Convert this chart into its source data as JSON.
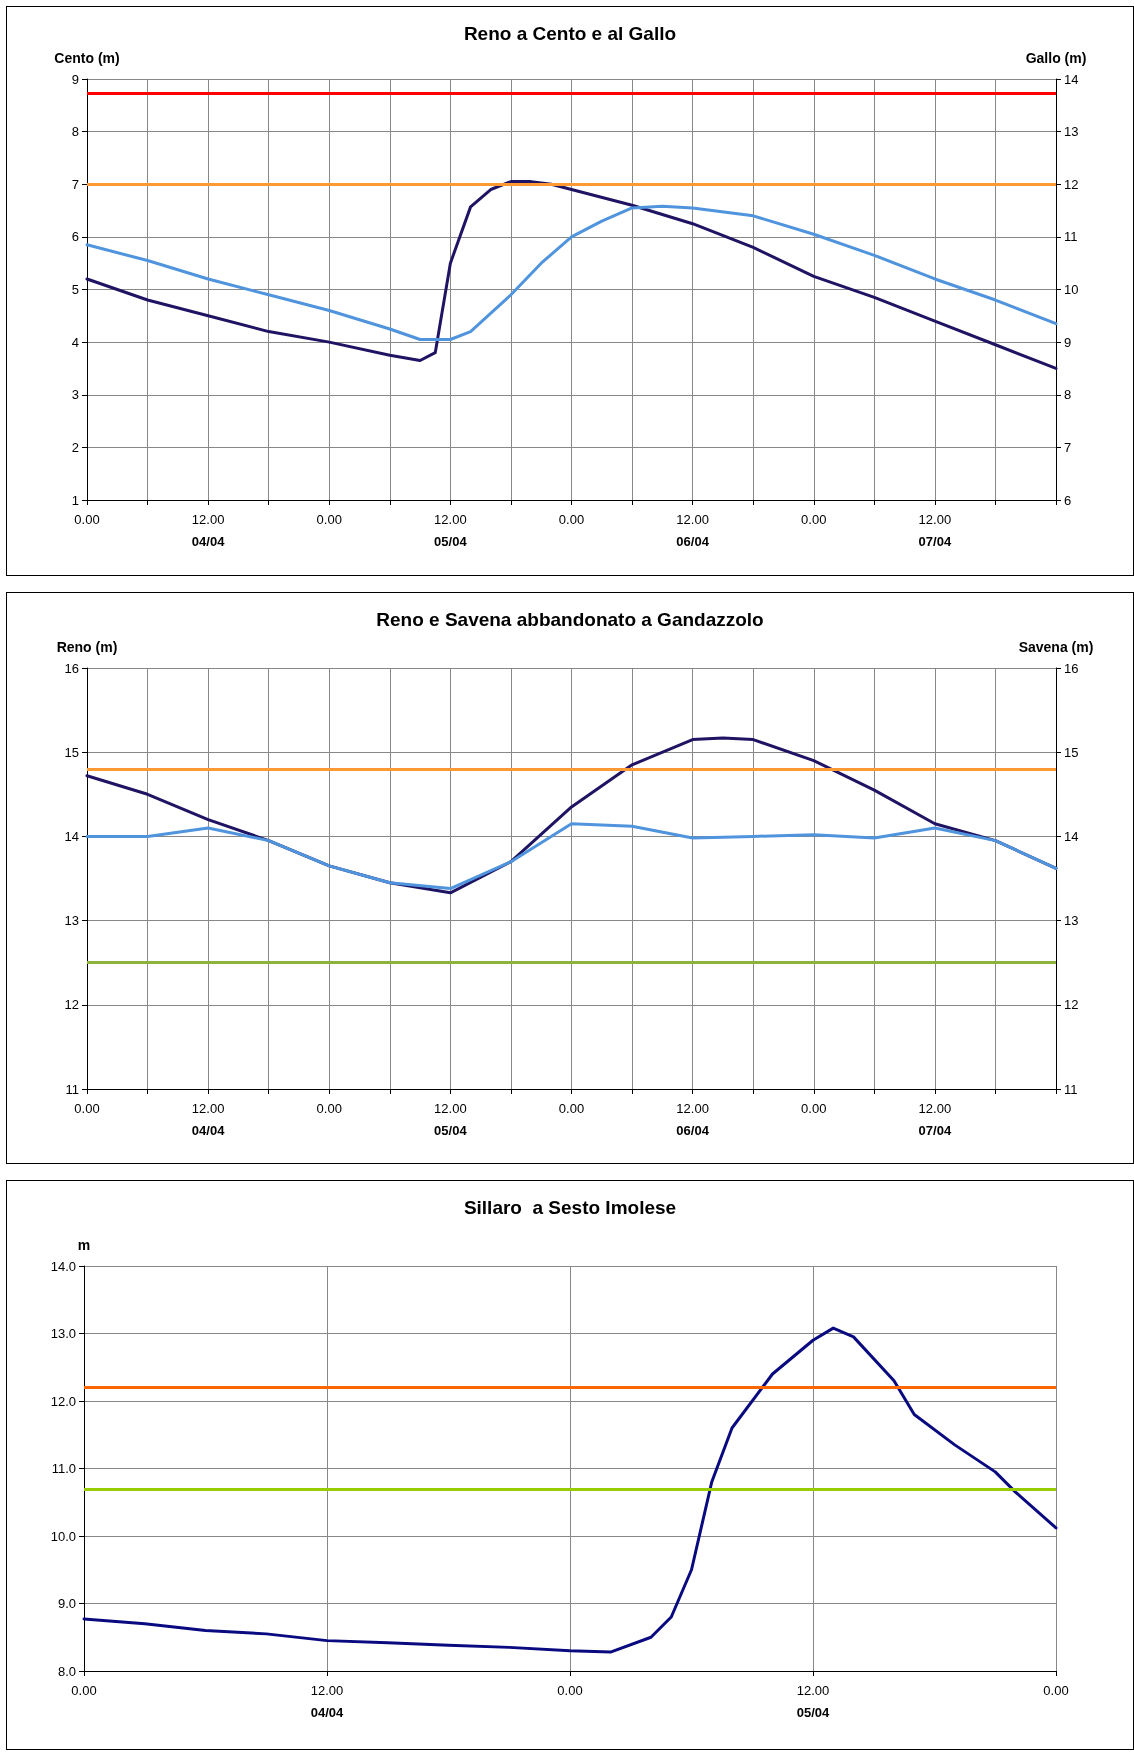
{
  "chart_data": [
    {
      "type": "line",
      "title": "Reno a Cento e al Gallo",
      "ylabel": "Cento (m)",
      "y2label": "Gallo (m)",
      "xlim": [
        "--04-04T00:00",
        "--04-08T00:00"
      ],
      "ylim": [
        1,
        9
      ],
      "yticks": [
        1,
        2,
        3,
        4,
        5,
        6,
        7,
        8,
        9
      ],
      "y2lim": [
        6,
        14
      ],
      "y2ticks": [
        6,
        7,
        8,
        9,
        10,
        11,
        12,
        13,
        14
      ],
      "xticks": [
        {
          "value": "--04-04T00:00",
          "label": "0.00"
        },
        {
          "value": "--04-04T06:00",
          "label": null
        },
        {
          "value": "--04-04T12:00",
          "label": "12.00\n04/04"
        },
        {
          "value": "--04-04T18:00",
          "label": null
        },
        {
          "value": "--04-05T00:00",
          "label": "0.00"
        },
        {
          "value": "--04-05T06:00",
          "label": null
        },
        {
          "value": "--04-05T12:00",
          "label": "12.00\n05/04"
        },
        {
          "value": "--04-05T18:00",
          "label": null
        },
        {
          "value": "--04-06T00:00",
          "label": "0.00"
        },
        {
          "value": "--04-06T06:00",
          "label": null
        },
        {
          "value": "--04-06T12:00",
          "label": "12.00\n06/04"
        },
        {
          "value": "--04-06T18:00",
          "label": null
        },
        {
          "value": "--04-07T00:00",
          "label": "0.00"
        },
        {
          "value": "--04-07T06:00",
          "label": null
        },
        {
          "value": "--04-07T12:00",
          "label": "12.00\n07/04"
        },
        {
          "value": "--04-07T18:00",
          "label": null
        },
        {
          "value": "--04-08T00:00",
          "label": null
        }
      ],
      "grid": true,
      "marker": "none",
      "line_style": "solid",
      "ref_lines": [
        {
          "axis": "y",
          "value": 8.72,
          "color": "#ff0000"
        },
        {
          "axis": "y",
          "value": 7,
          "color": "#ff9933"
        }
      ],
      "series": [
        {
          "color": "#1f1463",
          "x": [
            "--04-04T00:00",
            "--04-04T06:00",
            "--04-04T12:00",
            "--04-04T18:00",
            "--04-05T00:00",
            "--04-05T06:00",
            "--04-05T09:00",
            "--04-05T10:30",
            "--04-05T12:00",
            "--04-05T14:00",
            "--04-05T16:00",
            "--04-05T18:00",
            "--04-05T20:00",
            "--04-05T22:00",
            "--04-06T00:00",
            "--04-06T06:00",
            "--04-06T12:00",
            "--04-06T18:00",
            "--04-07T00:00",
            "--04-07T06:00",
            "--04-07T12:00",
            "--04-07T18:00",
            "--04-08T00:00"
          ],
          "values": [
            5.2,
            4.8,
            4.5,
            4.2,
            4.0,
            3.75,
            3.65,
            3.8,
            5.5,
            6.57,
            6.9,
            7.05,
            7.05,
            7.0,
            6.9,
            6.6,
            6.25,
            5.8,
            5.25,
            4.85,
            4.4,
            3.95,
            3.5
          ]
        },
        {
          "color": "#4f94dc",
          "axis": "y2",
          "x": [
            "--04-04T00:00",
            "--04-04T06:00",
            "--04-04T12:00",
            "--04-04T18:00",
            "--04-05T00:00",
            "--04-05T06:00",
            "--04-05T09:00",
            "--04-05T12:00",
            "--04-05T14:00",
            "--04-05T18:00",
            "--04-05T21:00",
            "--04-06T00:00",
            "--04-06T03:00",
            "--04-06T06:00",
            "--04-06T09:00",
            "--04-06T12:00",
            "--04-06T18:00",
            "--04-07T00:00",
            "--04-07T06:00",
            "--04-07T12:00",
            "--04-07T18:00",
            "--04-08T00:00"
          ],
          "values": [
            10.85,
            10.55,
            10.2,
            9.9,
            9.6,
            9.25,
            9.05,
            9.05,
            9.2,
            9.9,
            10.5,
            11.0,
            11.3,
            11.55,
            11.58,
            11.55,
            11.4,
            11.05,
            10.65,
            10.2,
            9.8,
            9.35
          ]
        }
      ]
    },
    {
      "type": "line",
      "title": "Reno e Savena abbandonato a Gandazzolo",
      "ylabel": "Reno (m)",
      "y2label": "Savena (m)",
      "xlim": [
        "--04-04T00:00",
        "--04-08T00:00"
      ],
      "ylim": [
        11,
        16
      ],
      "yticks": [
        11,
        12,
        13,
        14,
        15,
        16
      ],
      "y2lim": [
        11,
        16
      ],
      "y2ticks": [
        11,
        12,
        13,
        14,
        15,
        16
      ],
      "xticks": [
        {
          "value": "--04-04T00:00",
          "label": "0.00"
        },
        {
          "value": "--04-04T06:00",
          "label": null
        },
        {
          "value": "--04-04T12:00",
          "label": "12.00\n04/04"
        },
        {
          "value": "--04-04T18:00",
          "label": null
        },
        {
          "value": "--04-05T00:00",
          "label": "0.00"
        },
        {
          "value": "--04-05T06:00",
          "label": null
        },
        {
          "value": "--04-05T12:00",
          "label": "12.00\n05/04"
        },
        {
          "value": "--04-05T18:00",
          "label": null
        },
        {
          "value": "--04-06T00:00",
          "label": "0.00"
        },
        {
          "value": "--04-06T06:00",
          "label": null
        },
        {
          "value": "--04-06T12:00",
          "label": "12.00\n06/04"
        },
        {
          "value": "--04-06T18:00",
          "label": null
        },
        {
          "value": "--04-07T00:00",
          "label": "0.00"
        },
        {
          "value": "--04-07T06:00",
          "label": null
        },
        {
          "value": "--04-07T12:00",
          "label": "12.00\n07/04"
        },
        {
          "value": "--04-07T18:00",
          "label": null
        },
        {
          "value": "--04-08T00:00",
          "label": null
        }
      ],
      "grid": true,
      "marker": "none",
      "line_style": "solid",
      "ref_lines": [
        {
          "axis": "y",
          "value": 14.8,
          "color": "#ff9933"
        },
        {
          "axis": "y",
          "value": 12.5,
          "color": "#8db33a"
        }
      ],
      "series": [
        {
          "color": "#1f1463",
          "x": [
            "--04-04T00:00",
            "--04-04T06:00",
            "--04-04T12:00",
            "--04-04T18:00",
            "--04-05T00:00",
            "--04-05T06:00",
            "--04-05T12:00",
            "--04-05T18:00",
            "--04-06T00:00",
            "--04-06T06:00",
            "--04-06T12:00",
            "--04-06T15:00",
            "--04-06T18:00",
            "--04-07T00:00",
            "--04-07T06:00",
            "--04-07T12:00",
            "--04-07T18:00",
            "--04-08T00:00"
          ],
          "values": [
            14.72,
            14.5,
            14.2,
            13.95,
            13.65,
            13.45,
            13.33,
            13.7,
            14.35,
            14.85,
            15.15,
            15.17,
            15.15,
            14.9,
            14.55,
            14.15,
            13.95,
            13.62
          ]
        },
        {
          "color": "#4f94dc",
          "axis": "y2",
          "x": [
            "--04-04T00:00",
            "--04-04T06:00",
            "--04-04T12:00",
            "--04-04T18:00",
            "--04-05T00:00",
            "--04-05T06:00",
            "--04-05T12:00",
            "--04-05T18:00",
            "--04-06T00:00",
            "--04-06T06:00",
            "--04-06T12:00",
            "--04-06T18:00",
            "--04-07T00:00",
            "--04-07T06:00",
            "--04-07T12:00",
            "--04-07T18:00",
            "--04-08T00:00"
          ],
          "values": [
            14.0,
            14.0,
            14.1,
            13.95,
            13.65,
            13.45,
            13.38,
            13.7,
            14.15,
            14.12,
            13.98,
            14.0,
            14.02,
            13.98,
            14.1,
            13.95,
            13.62
          ]
        }
      ]
    },
    {
      "type": "line",
      "title": "Sillaro  a Sesto Imolese",
      "ylabel": "m",
      "xlim": [
        "--04-04T00:00",
        "--04-06T00:00"
      ],
      "ylim": [
        8,
        14
      ],
      "yticks": [
        {
          "value": 8,
          "label": "8.0"
        },
        {
          "value": 9,
          "label": "9.0"
        },
        {
          "value": 10,
          "label": "10.0"
        },
        {
          "value": 11,
          "label": "11.0"
        },
        {
          "value": 12,
          "label": "12.0"
        },
        {
          "value": 13,
          "label": "13.0"
        },
        {
          "value": 14,
          "label": "14.0"
        }
      ],
      "xticks": [
        {
          "value": "--04-04T00:00",
          "label": "0.00"
        },
        {
          "value": "--04-04T12:00",
          "label": "12.00\n04/04"
        },
        {
          "value": "--04-05T00:00",
          "label": "0.00"
        },
        {
          "value": "--04-05T12:00",
          "label": "12.00\n05/04"
        },
        {
          "value": "--04-06T00:00",
          "label": "0.00"
        }
      ],
      "grid": true,
      "marker": "none",
      "line_style": "solid",
      "ref_lines": [
        {
          "axis": "y",
          "value": 12.2,
          "color": "#ff6600"
        },
        {
          "axis": "y",
          "value": 10.7,
          "color": "#99cc00"
        }
      ],
      "series": [
        {
          "color": "#0a0a80",
          "x": [
            "--04-04T00:00",
            "--04-04T03:00",
            "--04-04T06:00",
            "--04-04T09:00",
            "--04-04T12:00",
            "--04-04T15:00",
            "--04-04T18:00",
            "--04-04T21:00",
            "--04-05T00:00",
            "--04-05T02:00",
            "--04-05T04:00",
            "--04-05T05:00",
            "--04-05T06:00",
            "--04-05T07:00",
            "--04-05T08:00",
            "--04-05T10:00",
            "--04-05T12:00",
            "--04-05T13:00",
            "--04-05T14:00",
            "--04-05T16:00",
            "--04-05T17:00",
            "--04-05T19:00",
            "--04-05T20:00",
            "--04-05T21:00",
            "--04-05T22:00",
            "--04-06T00:00"
          ],
          "values": [
            8.77,
            8.7,
            8.6,
            8.55,
            8.45,
            8.42,
            8.38,
            8.35,
            8.3,
            8.28,
            8.5,
            8.8,
            9.5,
            10.8,
            11.6,
            12.4,
            12.9,
            13.08,
            12.95,
            12.3,
            11.8,
            11.35,
            11.15,
            10.95,
            10.65,
            10.12
          ]
        }
      ]
    }
  ]
}
